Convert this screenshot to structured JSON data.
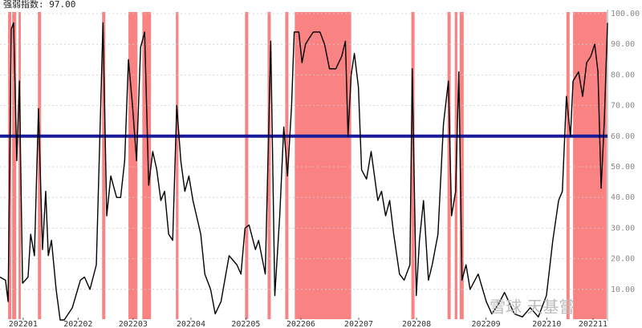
{
  "chart_data": {
    "type": "line",
    "title": "强弱指数: 97.00",
    "watermark": "雪球 天基嘗",
    "x": [
      0,
      1.9,
      2.8,
      3.9,
      4.7,
      5.8,
      6.7,
      7.8,
      9.7,
      10.6,
      11.9,
      13.3,
      14.7,
      15.8,
      16.7,
      17.8,
      19.4,
      20.8,
      22.2,
      25,
      27.8,
      29.2,
      31.1,
      33.3,
      35.6,
      36.9,
      38.3,
      40.3,
      41.7,
      43.1,
      44.4,
      45.8,
      47.2,
      48.6,
      50,
      51.4,
      52.8,
      54.2,
      55.6,
      56.9,
      58.3,
      59.7,
      61.1,
      62.5,
      63.9,
      65.3,
      66.7,
      69.4,
      70.8,
      72.8,
      74.4,
      76.4,
      79.2,
      81.9,
      83.3,
      84.7,
      86.1,
      88.3,
      89.4,
      91.7,
      93.6,
      95,
      96.7,
      98.1,
      99.4,
      100.8,
      101.7,
      103.3,
      104.4,
      105.6,
      106.9,
      108.3,
      110.6,
      112.2,
      113.9,
      116.1,
      118.1,
      119.4,
      120.3,
      121.4,
      122.5,
      123.9,
      125,
      126.7,
      128.3,
      130.6,
      131.9,
      133.3,
      134.7,
      136.1,
      138.1,
      139.7,
      141.7,
      142.5,
      143.9,
      145,
      146.4,
      148.1,
      149.4,
      151.4,
      153.3,
      155,
      156.1,
      157.5,
      158.6,
      159.7,
      161.1,
      162.5,
      165.3,
      168.1,
      170,
      172.2,
      174.4,
      177.8,
      180.6,
      183.3,
      186.1,
      188.9,
      191.1,
      193.1,
      194.4,
      195.8,
      197.2,
      198.1,
      200,
      201.4,
      202.8,
      204.2,
      205.6,
      206.7,
      207.8,
      208.9,
      210
    ],
    "series": [
      {
        "color": "#000000",
        "values": [
          14,
          13,
          6,
          95,
          97,
          52,
          78,
          12,
          14,
          28,
          21,
          69,
          23,
          42,
          21,
          26,
          10,
          0,
          0,
          4,
          13,
          14,
          10,
          18,
          97,
          34,
          47,
          40,
          40,
          52,
          85,
          70,
          52,
          89,
          94,
          44,
          55,
          49,
          39,
          42,
          28,
          26,
          70,
          52,
          42,
          47,
          39,
          28,
          15,
          10,
          2,
          6,
          21,
          18,
          15,
          30,
          31,
          23,
          26,
          15,
          91,
          8,
          34,
          63,
          47,
          70,
          94,
          94,
          84,
          90,
          92,
          94,
          94,
          90,
          82,
          82,
          86,
          91,
          60,
          80,
          87,
          76,
          49,
          46,
          55,
          39,
          42,
          34,
          39,
          28,
          15,
          13,
          18,
          82,
          8,
          26,
          39,
          13,
          18,
          28,
          64,
          78,
          34,
          42,
          81,
          13,
          18,
          10,
          15,
          6,
          2,
          5,
          9,
          2,
          1,
          4,
          1,
          8,
          26,
          39,
          42,
          73,
          60,
          78,
          81,
          73,
          84,
          86,
          90,
          81,
          43,
          65,
          97
        ]
      }
    ],
    "bands": [
      [
        2.8,
        3.9
      ],
      [
        4.2,
        5.6
      ],
      [
        6.4,
        7.2
      ],
      [
        13.1,
        14.2
      ],
      [
        35.3,
        36.4
      ],
      [
        44.4,
        47.5
      ],
      [
        49.2,
        52.2
      ],
      [
        60.8,
        61.7
      ],
      [
        84.7,
        85.8
      ],
      [
        92.5,
        93.6
      ],
      [
        98.6,
        99.7
      ],
      [
        101.9,
        121.4
      ],
      [
        142.2,
        143.3
      ],
      [
        154.7,
        155.8
      ],
      [
        157.2,
        158.1
      ],
      [
        158.9,
        160.3
      ],
      [
        195.8,
        196.9
      ],
      [
        198.1,
        209.7
      ]
    ],
    "band_color": "#f98383",
    "threshold": 60,
    "threshold_color": "#1a1a9c",
    "xlim": [
      0,
      210
    ],
    "xticks": [
      {
        "value": 8,
        "label": "202201"
      },
      {
        "value": 27,
        "label": "202202"
      },
      {
        "value": 46,
        "label": "202203"
      },
      {
        "value": 66,
        "label": "202204"
      },
      {
        "value": 85,
        "label": "202205"
      },
      {
        "value": 104,
        "label": "202206"
      },
      {
        "value": 124,
        "label": "202207"
      },
      {
        "value": 144,
        "label": "202208"
      },
      {
        "value": 168,
        "label": "202209"
      },
      {
        "value": 189,
        "label": "202210"
      },
      {
        "value": 205,
        "label": "202211"
      }
    ],
    "ylim": [
      0,
      100
    ],
    "yticks": [
      {
        "value": 10,
        "label": "10.00"
      },
      {
        "value": 20,
        "label": "20.00"
      },
      {
        "value": 30,
        "label": "30.00"
      },
      {
        "value": 40,
        "label": "40.00"
      },
      {
        "value": 50,
        "label": "50.00"
      },
      {
        "value": 60,
        "label": "60.00"
      },
      {
        "value": 70,
        "label": "70.00"
      },
      {
        "value": 80,
        "label": "80.00"
      },
      {
        "value": 90,
        "label": "90.00"
      },
      {
        "value": 100,
        "label": "100.00"
      }
    ],
    "grid": true
  }
}
